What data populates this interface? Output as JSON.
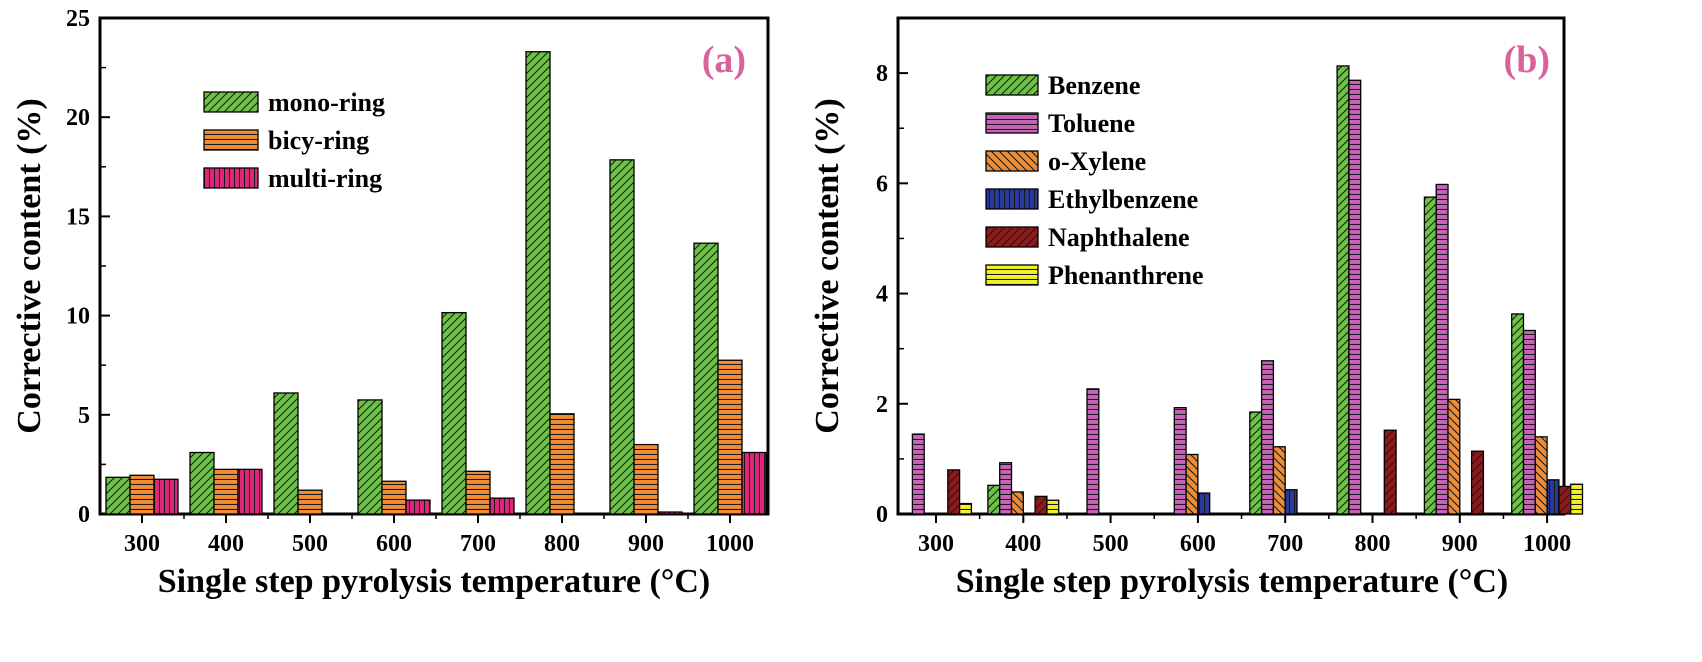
{
  "chart_data": [
    {
      "panel": "a",
      "panel_label": "(a)",
      "type": "bar",
      "xlabel": "Single step pyrolysis temperature (°C)",
      "ylabel": "Corrective content (%)",
      "categories": [
        "300",
        "400",
        "500",
        "600",
        "700",
        "800",
        "900",
        "1000"
      ],
      "ylim": [
        0,
        25
      ],
      "yticks": [
        0,
        5,
        10,
        15,
        20,
        25
      ],
      "series": [
        {
          "name": "mono-ring",
          "color": "#6ec24a",
          "pattern": "diag-right",
          "values": [
            1.85,
            3.1,
            6.1,
            5.75,
            10.15,
            23.3,
            17.85,
            13.65
          ]
        },
        {
          "name": "bicy-ring",
          "color": "#f08c34",
          "pattern": "horizontal",
          "values": [
            1.95,
            2.25,
            1.2,
            1.65,
            2.15,
            5.05,
            3.5,
            7.75
          ]
        },
        {
          "name": "multi-ring",
          "color": "#e0267a",
          "pattern": "vertical",
          "values": [
            1.75,
            2.25,
            0,
            0.7,
            0.8,
            0,
            0.1,
            3.1
          ]
        }
      ]
    },
    {
      "panel": "b",
      "panel_label": "(b)",
      "type": "bar",
      "xlabel": "Single step pyrolysis temperature (°C)",
      "ylabel": "Corrective content (%)",
      "categories": [
        "300",
        "400",
        "500",
        "600",
        "700",
        "800",
        "900",
        "1000"
      ],
      "ylim": [
        0,
        9
      ],
      "yticks": [
        0,
        2,
        4,
        6,
        8
      ],
      "series": [
        {
          "name": "Benzene",
          "color": "#6ec24a",
          "pattern": "diag-right",
          "values": [
            0,
            0.52,
            0,
            0,
            1.85,
            8.13,
            5.75,
            3.63
          ]
        },
        {
          "name": "Toluene",
          "color": "#c963b9",
          "pattern": "horizontal",
          "values": [
            1.45,
            0.93,
            2.27,
            1.93,
            2.78,
            7.87,
            5.98,
            3.33
          ]
        },
        {
          "name": "o-Xylene",
          "color": "#f08c34",
          "pattern": "diag-left",
          "values": [
            0,
            0.4,
            0,
            1.08,
            1.22,
            0,
            2.08,
            1.4
          ]
        },
        {
          "name": "Ethylbenzene",
          "color": "#2a3a9c",
          "pattern": "vertical",
          "values": [
            0,
            0,
            0,
            0.38,
            0.44,
            0,
            0,
            0.62
          ]
        },
        {
          "name": "Naphthalene",
          "color": "#8f1a1a",
          "pattern": "diag-right",
          "values": [
            0.8,
            0.32,
            0,
            0,
            0,
            1.52,
            1.14,
            0.5
          ]
        },
        {
          "name": "Phenanthrene",
          "color": "#f0f02a",
          "pattern": "horizontal",
          "values": [
            0.19,
            0.25,
            0,
            0,
            0,
            0,
            0,
            0.54
          ]
        }
      ]
    }
  ]
}
